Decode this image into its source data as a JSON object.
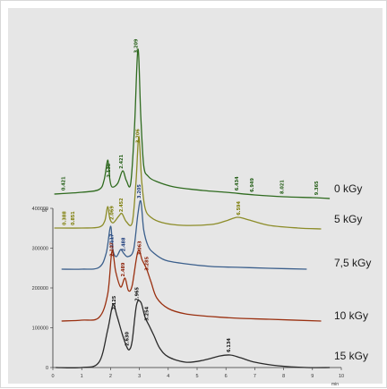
{
  "chart_data": {
    "type": "line",
    "title": "",
    "xlabel": "min",
    "ylabel": "uV",
    "x_ticks": [
      "0",
      "1",
      "2",
      "3",
      "4",
      "5",
      "6",
      "7",
      "8",
      "9",
      "10"
    ],
    "y_ticks": [
      "0",
      "100000",
      "200000",
      "300000",
      "400000"
    ],
    "xlim": [
      0,
      10
    ],
    "grid": false,
    "legend": "labels at right end of each trace",
    "series": [
      {
        "name": "0 kGy",
        "color": "#2f6b1f",
        "label_color": "#1e5a10",
        "points": [
          [
            0.05,
            -4
          ],
          [
            1.0,
            -2
          ],
          [
            1.6,
            1
          ],
          [
            1.78,
            12
          ],
          [
            1.9,
            34
          ],
          [
            1.97,
            14
          ],
          [
            2.05,
            4
          ],
          [
            2.25,
            8
          ],
          [
            2.42,
            22
          ],
          [
            2.55,
            11
          ],
          [
            2.7,
            8
          ],
          [
            2.83,
            70
          ],
          [
            2.95,
            158
          ],
          [
            3.05,
            82
          ],
          [
            3.15,
            28
          ],
          [
            3.3,
            16
          ],
          [
            3.6,
            10
          ],
          [
            4.2,
            4
          ],
          [
            5.2,
            0
          ],
          [
            6.0,
            -2
          ],
          [
            7.0,
            -5
          ],
          [
            8.0,
            -7
          ],
          [
            9.0,
            -8
          ],
          [
            9.6,
            -9
          ]
        ],
        "peak_labels": [
          {
            "x": 0.42,
            "text": "0.421"
          },
          {
            "x": 1.99,
            "text": "2.138"
          },
          {
            "x": 2.43,
            "text": "2.421"
          },
          {
            "x": 2.94,
            "text": "3.209"
          },
          {
            "x": 6.43,
            "text": "6.434"
          },
          {
            "x": 6.95,
            "text": "6.949"
          },
          {
            "x": 8.0,
            "text": "8.021"
          },
          {
            "x": 9.2,
            "text": "9.365"
          }
        ]
      },
      {
        "name": "5 kGy",
        "color": "#8c8c28",
        "label_color": "#7a7a00",
        "points": [
          [
            0.05,
            0
          ],
          [
            1.0,
            0
          ],
          [
            1.6,
            1
          ],
          [
            1.8,
            8
          ],
          [
            1.9,
            24
          ],
          [
            1.98,
            10
          ],
          [
            2.1,
            6
          ],
          [
            2.3,
            14
          ],
          [
            2.4,
            16
          ],
          [
            2.55,
            7
          ],
          [
            2.75,
            6
          ],
          [
            2.88,
            50
          ],
          [
            2.98,
            102
          ],
          [
            3.08,
            52
          ],
          [
            3.2,
            22
          ],
          [
            3.4,
            12
          ],
          [
            3.8,
            6
          ],
          [
            4.5,
            3
          ],
          [
            5.5,
            4
          ],
          [
            6.0,
            8
          ],
          [
            6.4,
            12
          ],
          [
            6.8,
            9
          ],
          [
            7.5,
            3
          ],
          [
            8.5,
            0
          ],
          [
            9.3,
            -1
          ]
        ],
        "peak_labels": [
          {
            "x": 0.45,
            "text": "0.388"
          },
          {
            "x": 0.75,
            "text": "0.851"
          },
          {
            "x": 2.1,
            "text": "2.069"
          },
          {
            "x": 2.42,
            "text": "2.452"
          },
          {
            "x": 3.0,
            "text": "3.206"
          },
          {
            "x": 6.5,
            "text": "6.594"
          }
        ]
      },
      {
        "name": "7,5 kGy",
        "color": "#3b5f8c",
        "label_color": "#1a3a7a",
        "points": [
          [
            0.3,
            0
          ],
          [
            1.0,
            0
          ],
          [
            1.6,
            2
          ],
          [
            1.85,
            18
          ],
          [
            2.0,
            48
          ],
          [
            2.08,
            22
          ],
          [
            2.2,
            14
          ],
          [
            2.35,
            22
          ],
          [
            2.45,
            18
          ],
          [
            2.6,
            14
          ],
          [
            2.8,
            22
          ],
          [
            2.95,
            62
          ],
          [
            3.05,
            76
          ],
          [
            3.15,
            44
          ],
          [
            3.3,
            26
          ],
          [
            3.5,
            18
          ],
          [
            3.9,
            10
          ],
          [
            4.6,
            6
          ],
          [
            5.5,
            3
          ],
          [
            6.5,
            2
          ],
          [
            7.5,
            1
          ],
          [
            8.8,
            0
          ]
        ],
        "peak_labels": [
          {
            "x": 2.1,
            "text": "2.117"
          },
          {
            "x": 2.5,
            "text": "2.488"
          },
          {
            "x": 3.05,
            "text": "3.205"
          }
        ]
      },
      {
        "name": "10 kGy",
        "color": "#9a3010",
        "label_color": "#8a1a00",
        "points": [
          [
            0.3,
            0
          ],
          [
            1.0,
            1
          ],
          [
            1.6,
            4
          ],
          [
            1.9,
            30
          ],
          [
            2.05,
            78
          ],
          [
            2.18,
            55
          ],
          [
            2.35,
            38
          ],
          [
            2.5,
            48
          ],
          [
            2.62,
            34
          ],
          [
            2.75,
            40
          ],
          [
            2.95,
            78
          ],
          [
            3.1,
            68
          ],
          [
            3.25,
            58
          ],
          [
            3.4,
            44
          ],
          [
            3.6,
            26
          ],
          [
            4.0,
            14
          ],
          [
            4.6,
            8
          ],
          [
            5.5,
            5
          ],
          [
            6.5,
            3
          ],
          [
            7.5,
            2
          ],
          [
            9.3,
            0
          ]
        ],
        "peak_labels": [
          {
            "x": 2.1,
            "text": "2.107"
          },
          {
            "x": 2.48,
            "text": "2.489"
          },
          {
            "x": 3.06,
            "text": "3.063"
          },
          {
            "x": 3.3,
            "text": "3.285"
          }
        ]
      },
      {
        "name": "15 kGy",
        "color": "#2a2a2a",
        "label_color": "#111111",
        "points": [
          [
            0.1,
            0
          ],
          [
            1.0,
            0
          ],
          [
            1.6,
            6
          ],
          [
            1.9,
            42
          ],
          [
            2.08,
            70
          ],
          [
            2.22,
            58
          ],
          [
            2.4,
            38
          ],
          [
            2.55,
            24
          ],
          [
            2.65,
            20
          ],
          [
            2.75,
            30
          ],
          [
            2.9,
            70
          ],
          [
            3.05,
            73
          ],
          [
            3.2,
            56
          ],
          [
            3.35,
            46
          ],
          [
            3.5,
            36
          ],
          [
            3.7,
            22
          ],
          [
            4.0,
            12
          ],
          [
            4.6,
            6
          ],
          [
            5.2,
            8
          ],
          [
            5.8,
            13
          ],
          [
            6.15,
            14
          ],
          [
            6.5,
            11
          ],
          [
            7.0,
            6
          ],
          [
            7.8,
            2
          ],
          [
            8.8,
            0
          ],
          [
            9.6,
            0
          ]
        ],
        "peak_labels": [
          {
            "x": 2.18,
            "text": "2.125"
          },
          {
            "x": 2.62,
            "text": "2.630"
          },
          {
            "x": 2.96,
            "text": "2.965"
          },
          {
            "x": 3.3,
            "text": "3.254"
          },
          {
            "x": 6.15,
            "text": "6.134"
          }
        ]
      }
    ]
  }
}
